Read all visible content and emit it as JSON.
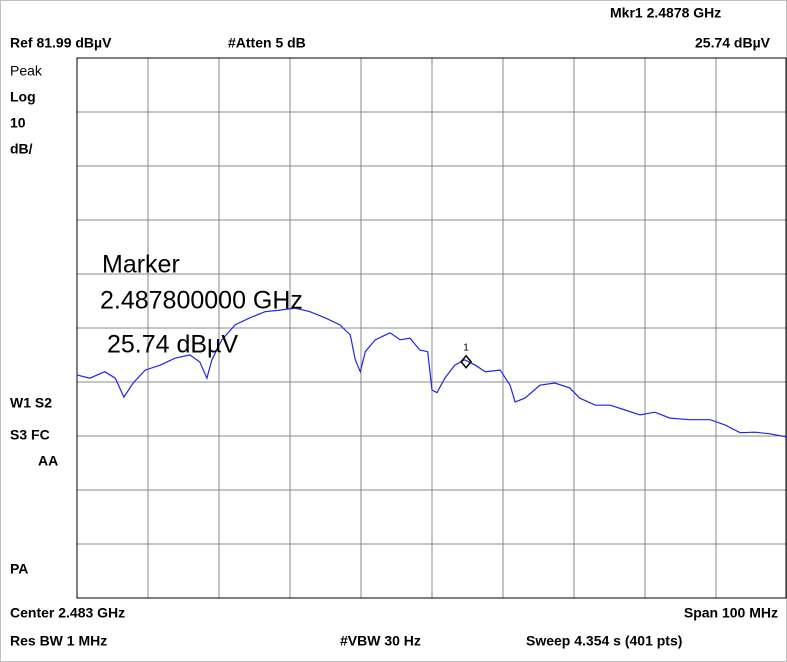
{
  "chart_data": {
    "type": "line",
    "header": {
      "marker_readout": "Mkr1  2.4878 GHz",
      "ref_level": "Ref 81.99 dBµV",
      "attenuation": "#Atten 5 dB",
      "marker_level": "25.74 dBµV"
    },
    "side_labels": [
      "Peak",
      "Log",
      "10",
      "dB/",
      "W1  S2",
      "S3  FC",
      "AA",
      "PA"
    ],
    "footer": {
      "center": "Center 2.483 GHz",
      "span": "Span 100 MHz",
      "res_bw": "Res BW 1 MHz",
      "vbw": "#VBW 30 Hz",
      "sweep": "Sweep 4.354 s (401 pts)"
    },
    "annotation": [
      "Marker",
      "2.487800000 GHz",
      " 25.74 dBµV"
    ],
    "xlim": [
      2.433,
      2.533
    ],
    "ylim": [
      -18.01,
      81.99
    ],
    "series": [
      {
        "color": "#2424e6",
        "x": [
          2.433,
          2.4348,
          2.4369,
          2.4384,
          2.4396,
          2.4409,
          2.4426,
          2.4447,
          2.4468,
          2.4489,
          2.4503,
          2.4513,
          2.452,
          2.4534,
          2.4553,
          2.4574,
          2.4595,
          2.4616,
          2.4637,
          2.4658,
          2.4679,
          2.47,
          2.4715,
          2.4722,
          2.4729,
          2.4736,
          2.475,
          2.4771,
          2.4785,
          2.4799,
          2.4813,
          2.4824,
          2.483,
          2.4837,
          2.4848,
          2.4862,
          2.4876,
          2.4891,
          2.4905,
          2.4926,
          2.494,
          2.4947,
          2.4961,
          2.4982,
          2.5003,
          2.5024,
          2.5038,
          2.506,
          2.5081,
          2.5102,
          2.5123,
          2.5144,
          2.5165,
          2.5193,
          2.5222,
          2.5243,
          2.5264,
          2.5285,
          2.5306,
          2.533
        ],
        "values": [
          23.3,
          22.7,
          23.9,
          22.7,
          19.2,
          21.8,
          24.2,
          25.1,
          26.4,
          27.0,
          25.7,
          22.7,
          26.1,
          29.8,
          32.6,
          33.9,
          35.0,
          35.3,
          35.7,
          35.0,
          33.9,
          32.6,
          30.7,
          26.1,
          23.9,
          27.6,
          29.8,
          31.1,
          29.8,
          30.1,
          27.9,
          27.6,
          20.5,
          20.0,
          22.7,
          25.1,
          26.1,
          25.1,
          23.9,
          24.2,
          21.4,
          18.3,
          19.0,
          21.4,
          21.8,
          20.9,
          19.0,
          17.7,
          17.7,
          16.8,
          15.9,
          16.4,
          15.3,
          15.0,
          15.0,
          14.0,
          12.6,
          12.7,
          12.4,
          11.8
        ]
      }
    ],
    "marker": {
      "x": 2.4878,
      "value": 25.74,
      "label": "1"
    }
  }
}
